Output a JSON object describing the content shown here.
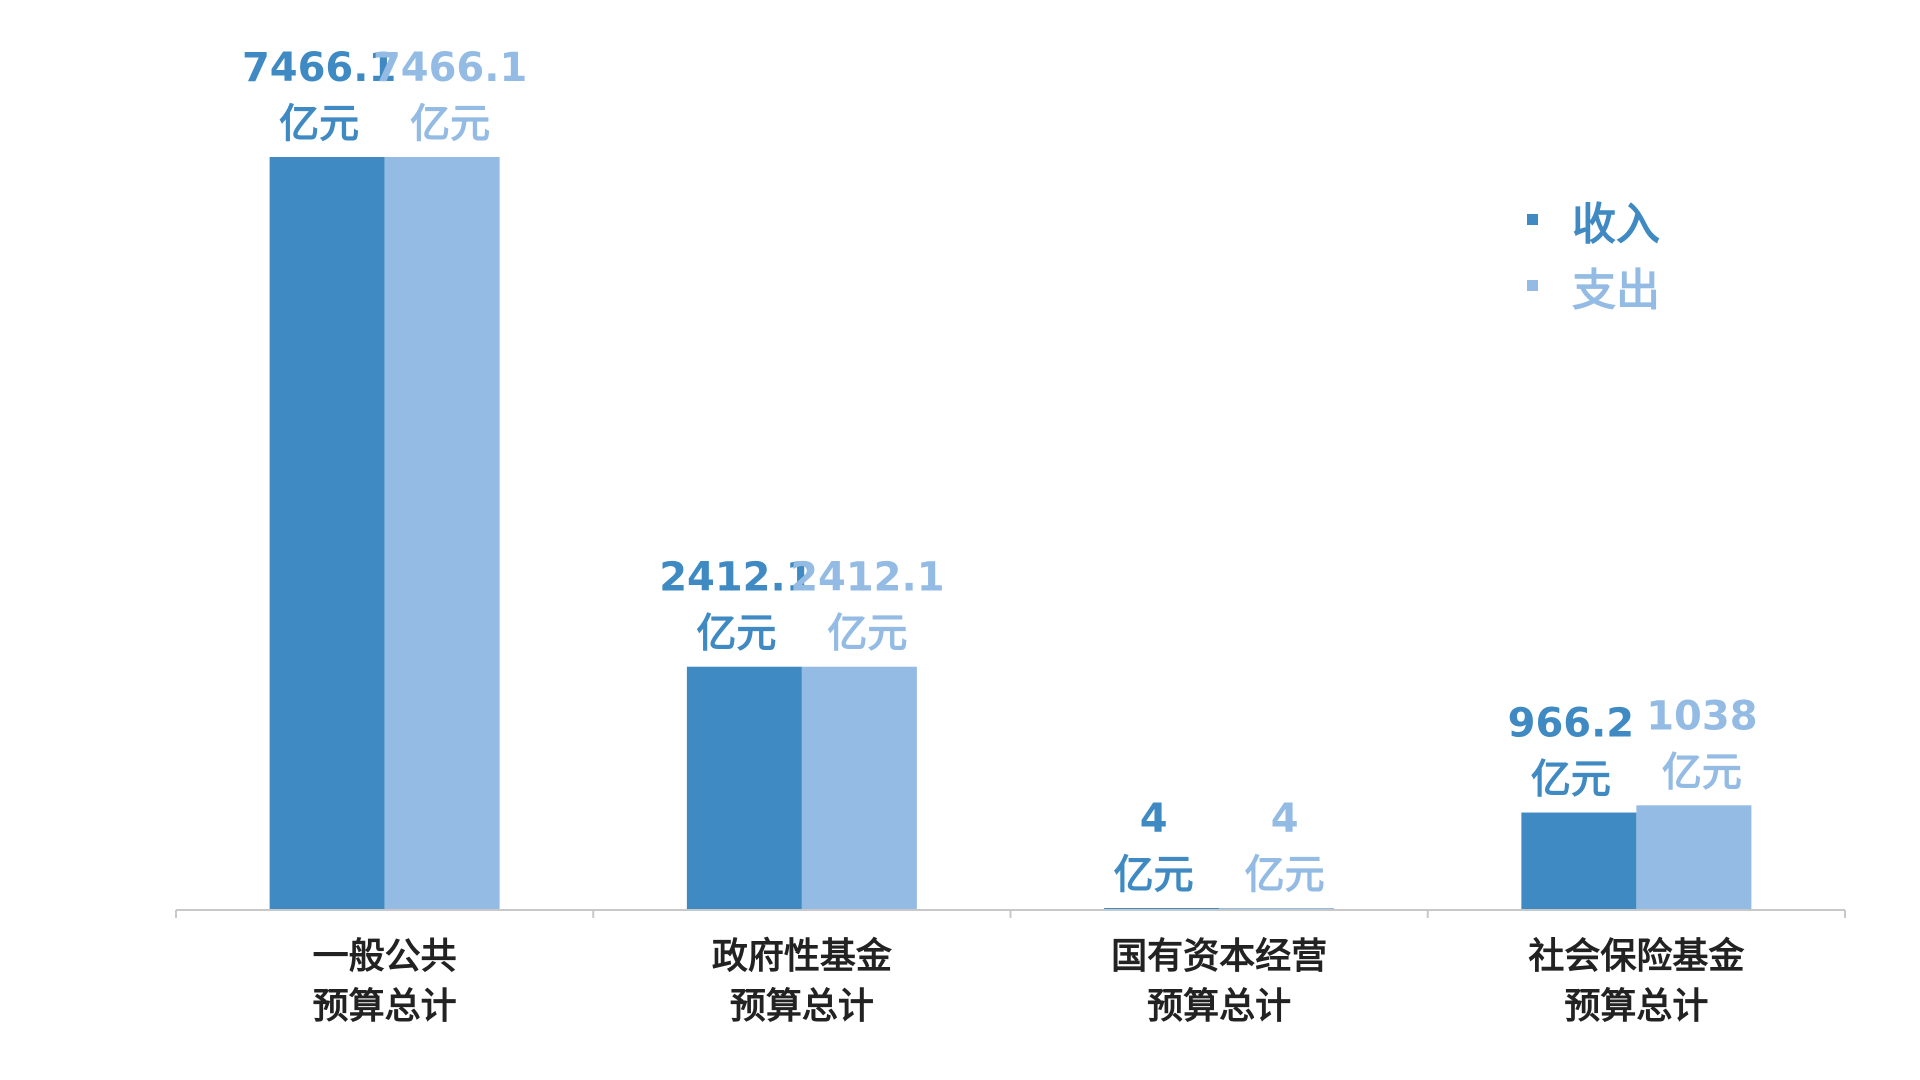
{
  "chart_data": {
    "type": "bar",
    "title": "",
    "xlabel": "",
    "ylabel": "",
    "unit": "亿元",
    "categories": [
      [
        "一般公共",
        "预算总计"
      ],
      [
        "政府性基金",
        "预算总计"
      ],
      [
        "国有资本经营",
        "预算总计"
      ],
      [
        "社会保险基金",
        "预算总计"
      ]
    ],
    "series": [
      {
        "name": "收入",
        "values": [
          7466.1,
          2412.1,
          4,
          966.2
        ],
        "labels": [
          "7466.1",
          "2412.1",
          "4",
          "966.2"
        ],
        "color": "#3f8ac2"
      },
      {
        "name": "支出",
        "values": [
          7466.1,
          2412.1,
          4,
          1038
        ],
        "labels": [
          "7466.1",
          "2412.1",
          "4",
          "1038"
        ],
        "color": "#93bbe4"
      }
    ],
    "ylim": [
      0,
      7466.1
    ],
    "grid": false,
    "legend_position": "top-right",
    "axis_color": "#c8c8c8"
  }
}
